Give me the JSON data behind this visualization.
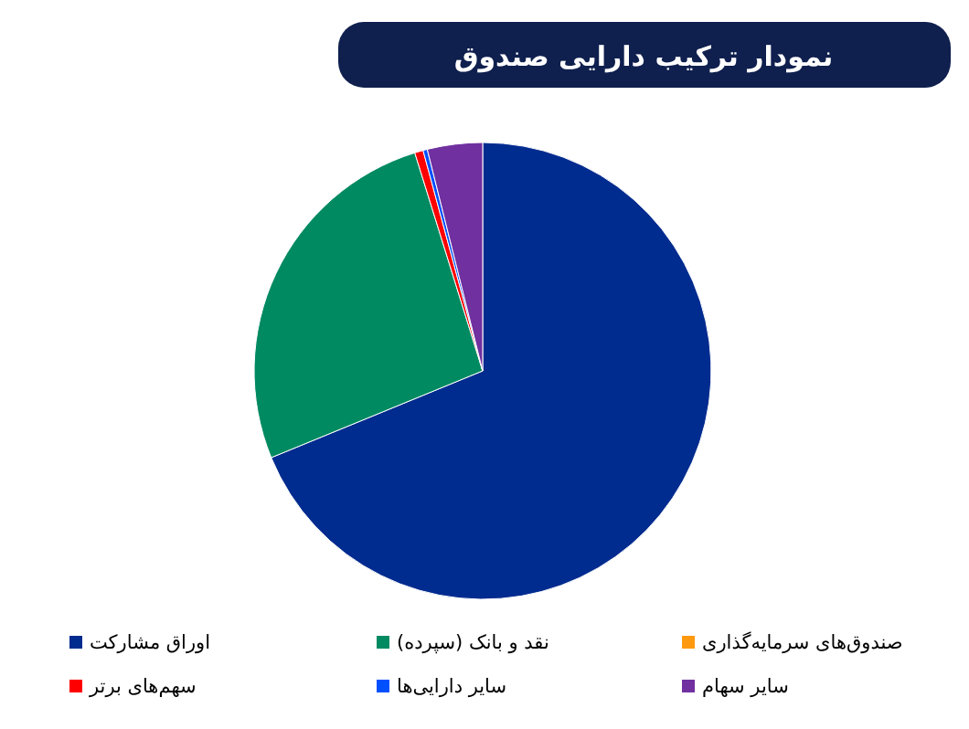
{
  "chart_data": {
    "type": "pie",
    "title": "نمودار ترکیب دارایی صندوق",
    "categories": [
      "اوراق مشارکت",
      "نقد و بانک (سپرده)",
      "صندوق‌های سرمایه‌گذاری",
      "سهم‌های برتر",
      "سایر دارایی‌ها",
      "سایر سهام"
    ],
    "values": [
      68.8,
      26.4,
      0,
      0.6,
      0.3,
      3.9
    ],
    "colors": [
      "#002b8f",
      "#008a62",
      "#ff9a10",
      "#ff0000",
      "#0050ff",
      "#7030a0"
    ],
    "legend": "bottom"
  }
}
